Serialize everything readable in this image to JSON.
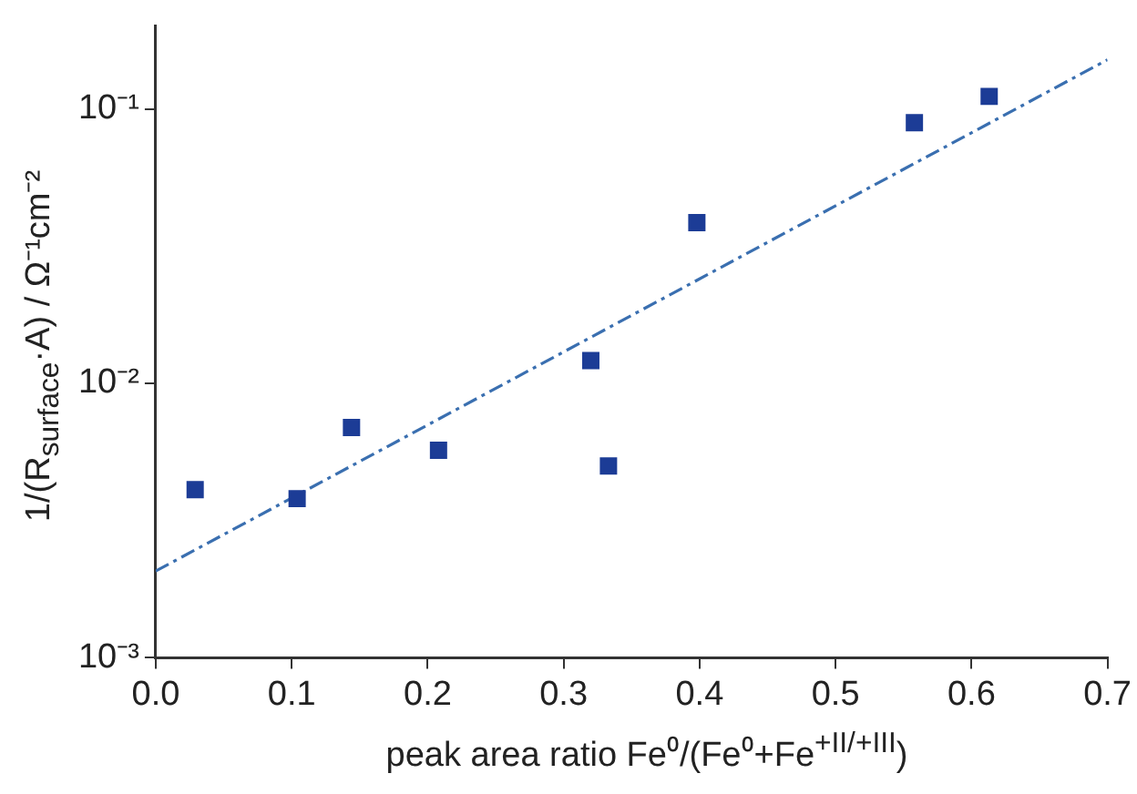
{
  "chart_data": {
    "type": "scatter",
    "xlabel": "peak area ratio Fe⁰/(Fe⁰+Fe$^{+II/+III}$)",
    "ylabel": "1/(R$_{surface}$·A) / Ω⁻¹cm⁻²",
    "log": "y",
    "xlim": [
      0,
      0.7
    ],
    "xticks": [
      {
        "value": 0,
        "label": "0.0"
      },
      0.1,
      0.2,
      0.3,
      0.4,
      0.5,
      0.6,
      0.7
    ],
    "ylim": [
      0.001,
      0.2
    ],
    "yticks": [
      {
        "value": 0.001,
        "label": "10⁻³"
      },
      {
        "value": 0.01,
        "label": "10⁻²"
      },
      {
        "value": 0.1,
        "label": "10⁻¹"
      }
    ],
    "grid": false,
    "legend": false,
    "marker": "square",
    "series": [
      {
        "type": "scatter",
        "color": "#1c3c96",
        "x": [
          0.029,
          0.104,
          0.144,
          0.208,
          0.32,
          0.333,
          0.398,
          0.558,
          0.613
        ],
        "values": [
          0.0041,
          0.0038,
          0.0069,
          0.0057,
          0.0121,
          0.005,
          0.0385,
          0.089,
          0.111
        ]
      },
      {
        "type": "line",
        "color": "#3a6fb0",
        "marker": "none",
        "line_style": "dashed",
        "x": [
          0,
          0.7
        ],
        "values": [
          0.00207,
          0.151
        ]
      }
    ]
  }
}
